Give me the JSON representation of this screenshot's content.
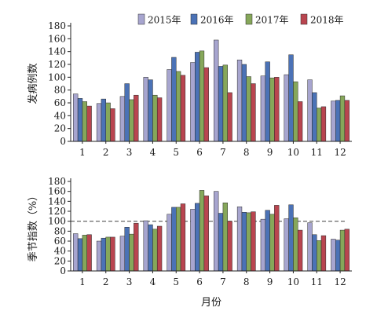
{
  "chart_data": [
    {
      "type": "bar",
      "ylabel": "发病例数",
      "xlabel": "",
      "ylim": [
        0,
        180
      ],
      "yticks": [
        "0",
        "20",
        "40",
        "60",
        "80",
        "100",
        "120",
        "140",
        "160",
        "180"
      ],
      "categories": [
        "1",
        "2",
        "3",
        "4",
        "5",
        "6",
        "7",
        "8",
        "9",
        "10",
        "11",
        "12"
      ],
      "legend_position": "top",
      "series": [
        {
          "name": "2015年",
          "color": "#a7a5cf",
          "values": [
            74,
            59,
            70,
            100,
            112,
            123,
            158,
            127,
            102,
            104,
            96,
            63
          ]
        },
        {
          "name": "2016年",
          "color": "#4b72b6",
          "values": [
            67,
            66,
            90,
            96,
            131,
            139,
            117,
            120,
            124,
            135,
            76,
            64
          ]
        },
        {
          "name": "2017年",
          "color": "#86a75a",
          "values": [
            62,
            60,
            65,
            72,
            109,
            141,
            119,
            101,
            99,
            93,
            52,
            71
          ]
        },
        {
          "name": "2018年",
          "color": "#b9454f",
          "values": [
            55,
            51,
            72,
            68,
            103,
            115,
            76,
            90,
            100,
            62,
            54,
            64
          ]
        }
      ]
    },
    {
      "type": "bar",
      "ylabel": "季节指数（%）",
      "xlabel": "月份",
      "ylim": [
        0,
        180
      ],
      "yticks": [
        "0",
        "20",
        "40",
        "60",
        "80",
        "100",
        "120",
        "140",
        "160",
        "180"
      ],
      "categories": [
        "1",
        "2",
        "3",
        "4",
        "5",
        "6",
        "7",
        "8",
        "9",
        "10",
        "11",
        "12"
      ],
      "reference_line": 100,
      "series": [
        {
          "name": "2015年",
          "color": "#a7a5cf",
          "values": [
            75,
            60,
            70,
            101,
            114,
            124,
            160,
            129,
            104,
            105,
            97,
            64
          ]
        },
        {
          "name": "2016年",
          "color": "#4b72b6",
          "values": [
            65,
            66,
            88,
            93,
            128,
            136,
            116,
            118,
            122,
            133,
            73,
            62
          ]
        },
        {
          "name": "2017年",
          "color": "#86a75a",
          "values": [
            72,
            68,
            74,
            84,
            128,
            162,
            137,
            117,
            114,
            107,
            61,
            82
          ]
        },
        {
          "name": "2018年",
          "color": "#b9454f",
          "values": [
            73,
            68,
            96,
            90,
            135,
            151,
            100,
            119,
            132,
            82,
            71,
            84
          ]
        }
      ]
    }
  ]
}
